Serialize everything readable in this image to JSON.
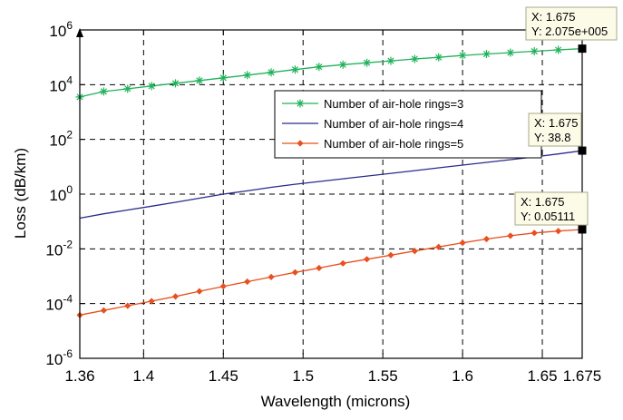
{
  "chart_data": {
    "type": "line",
    "xlabel": "Wavelength (microns)",
    "ylabel": "Loss (dB/km)",
    "xlim": [
      1.36,
      1.675
    ],
    "ylim": [
      1e-06,
      1000000.0
    ],
    "yscale": "log",
    "grid": "dashed",
    "legend_position": "center-right",
    "x_ticks": [
      1.36,
      1.4,
      1.45,
      1.5,
      1.55,
      1.6,
      1.65,
      1.675
    ],
    "x_tick_labels": [
      "1.36",
      "1.4",
      "1.45",
      "1.5",
      "1.55",
      "1.6",
      "1.65",
      "1.675"
    ],
    "y_tick_exponents": [
      -6,
      -4,
      -2,
      0,
      2,
      4,
      6
    ],
    "x_sample": [
      1.36,
      1.375,
      1.39,
      1.405,
      1.42,
      1.435,
      1.45,
      1.465,
      1.48,
      1.495,
      1.51,
      1.525,
      1.54,
      1.555,
      1.57,
      1.585,
      1.6,
      1.615,
      1.63,
      1.645,
      1.66,
      1.675
    ],
    "series": [
      {
        "name": "Number of air-hole rings=3",
        "color": "#1fb25a",
        "marker": "asterisk",
        "log10_y": [
          3.55,
          3.75,
          3.85,
          3.95,
          4.05,
          4.15,
          4.25,
          4.35,
          4.45,
          4.55,
          4.65,
          4.73,
          4.8,
          4.87,
          4.94,
          5.0,
          5.07,
          5.12,
          5.17,
          5.22,
          5.27,
          5.317
        ]
      },
      {
        "name": "Number of air-hole rings=4",
        "color": "#2b2b8c",
        "marker": "none",
        "log10_y": [
          -0.88,
          -0.72,
          -0.58,
          -0.44,
          -0.3,
          -0.15,
          0.0,
          0.12,
          0.25,
          0.36,
          0.46,
          0.56,
          0.66,
          0.76,
          0.86,
          0.96,
          1.06,
          1.16,
          1.26,
          1.36,
          1.47,
          1.589
        ]
      },
      {
        "name": "Number of air-hole rings=5",
        "color": "#e8501e",
        "marker": "diamond",
        "log10_y": [
          -4.42,
          -4.25,
          -4.08,
          -3.91,
          -3.74,
          -3.55,
          -3.37,
          -3.2,
          -3.03,
          -2.86,
          -2.7,
          -2.53,
          -2.38,
          -2.23,
          -2.08,
          -1.93,
          -1.78,
          -1.64,
          -1.52,
          -1.42,
          -1.35,
          -1.2915
        ]
      }
    ],
    "datatips": [
      {
        "x_text": "X: 1.675",
        "y_text": "Y: 2.075e+005",
        "x": 1.675,
        "log10_y": 5.317
      },
      {
        "x_text": "X: 1.675",
        "y_text": "Y: 38.8",
        "x": 1.675,
        "log10_y": 1.589
      },
      {
        "x_text": "X: 1.675",
        "y_text": "Y: 0.05111",
        "x": 1.675,
        "log10_y": -1.2915
      }
    ]
  }
}
